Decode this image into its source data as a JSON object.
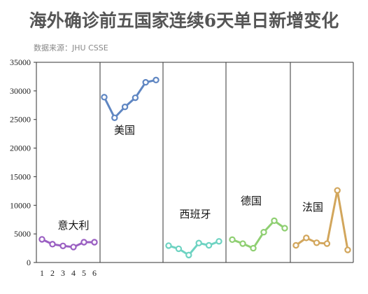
{
  "chart_data": {
    "type": "line",
    "title": "海外确诊前五国家连续6天单日新增变化",
    "source": "数据来源：JHU CSSE",
    "xlabel": "",
    "ylabel": "",
    "ylim": [
      0,
      35000
    ],
    "yticks": [
      0,
      5000,
      10000,
      15000,
      20000,
      25000,
      30000,
      35000
    ],
    "x": [
      1,
      2,
      3,
      4,
      5,
      6
    ],
    "grid": false,
    "legend": "none",
    "panels": [
      {
        "name": "意大利",
        "color": "#9a5fc2",
        "values": [
          4050,
          3200,
          2900,
          2700,
          3550,
          3550
        ]
      },
      {
        "name": "美国",
        "color": "#5f86c2",
        "values": [
          28900,
          25300,
          27200,
          28800,
          31500,
          31900
        ]
      },
      {
        "name": "西班牙",
        "color": "#6ed3c2",
        "values": [
          2950,
          2400,
          1300,
          3400,
          3000,
          3700
        ]
      },
      {
        "name": "德国",
        "color": "#8fcf72",
        "values": [
          4000,
          3300,
          2500,
          5300,
          7300,
          6000
        ]
      },
      {
        "name": "法国",
        "color": "#d2a65c",
        "values": [
          3000,
          4300,
          3450,
          3300,
          12600,
          2200
        ]
      }
    ]
  }
}
